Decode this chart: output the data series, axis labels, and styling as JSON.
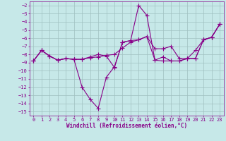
{
  "xlabel": "Windchill (Refroidissement éolien,°C)",
  "background_color": "#c6e8e8",
  "grid_color": "#a0c0c0",
  "line_color": "#880088",
  "xlim": [
    -0.5,
    23.5
  ],
  "ylim": [
    -15.5,
    -1.5
  ],
  "yticks": [
    -2,
    -3,
    -4,
    -5,
    -6,
    -7,
    -8,
    -9,
    -10,
    -11,
    -12,
    -13,
    -14,
    -15
  ],
  "xticks": [
    0,
    1,
    2,
    3,
    4,
    5,
    6,
    7,
    8,
    9,
    10,
    11,
    12,
    13,
    14,
    15,
    16,
    17,
    18,
    19,
    20,
    21,
    22,
    23
  ],
  "line1_x": [
    0,
    1,
    2,
    3,
    4,
    5,
    6,
    7,
    8,
    9,
    10,
    11,
    12,
    13,
    14,
    15,
    16,
    17,
    18,
    19,
    20,
    21,
    22,
    23
  ],
  "line1_y": [
    -8.8,
    -7.5,
    -8.2,
    -8.7,
    -8.5,
    -8.6,
    -12.0,
    -13.5,
    -14.6,
    -10.8,
    -9.5,
    -6.5,
    -6.3,
    -2.0,
    -3.2,
    -8.7,
    -8.3,
    -8.8,
    -8.8,
    -8.5,
    -8.5,
    -6.2,
    -5.9,
    -4.3
  ],
  "line2_x": [
    0,
    1,
    2,
    3,
    4,
    5,
    6,
    7,
    8,
    9,
    10,
    11,
    12,
    13,
    14,
    15,
    16,
    17,
    18,
    19,
    20,
    21,
    22,
    23
  ],
  "line2_y": [
    -8.8,
    -7.5,
    -8.2,
    -8.7,
    -8.5,
    -8.6,
    -8.6,
    -8.4,
    -8.3,
    -8.1,
    -8.0,
    -7.2,
    -6.5,
    -6.2,
    -5.8,
    -7.3,
    -7.3,
    -7.0,
    -8.5,
    -8.5,
    -7.5,
    -6.2,
    -5.9,
    -4.3
  ],
  "line3_x": [
    0,
    1,
    2,
    3,
    4,
    5,
    6,
    7,
    8,
    9,
    10,
    11,
    12,
    13,
    14,
    15,
    16,
    17,
    18,
    19,
    20,
    21,
    22,
    23
  ],
  "line3_y": [
    -8.8,
    -7.5,
    -8.2,
    -8.7,
    -8.5,
    -8.6,
    -8.6,
    -8.3,
    -8.0,
    -8.2,
    -9.6,
    -6.5,
    -6.3,
    -6.2,
    -5.8,
    -8.7,
    -8.8,
    -8.8,
    -8.8,
    -8.5,
    -8.5,
    -6.2,
    -5.9,
    -4.3
  ],
  "marker_size": 2.5,
  "line_width": 0.8,
  "font_family": "monospace",
  "tick_fontsize": 5.0,
  "xlabel_fontsize": 5.5
}
